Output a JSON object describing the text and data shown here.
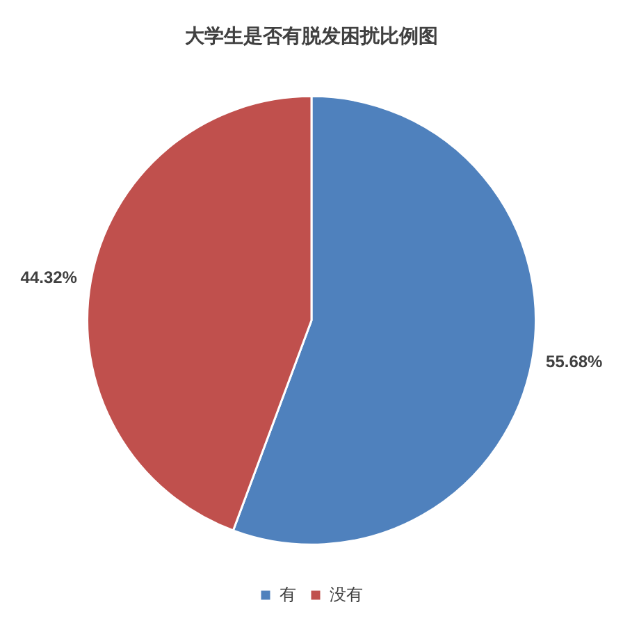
{
  "chart_data": {
    "type": "pie",
    "title": "大学生是否有脱发困扰比例图",
    "categories": [
      "有",
      "没有"
    ],
    "values": [
      55.68,
      44.32
    ],
    "colors": [
      "#4f81bd",
      "#c0504d"
    ],
    "value_labels": [
      "55.68%",
      "44.32%"
    ],
    "legend": "bottom"
  }
}
